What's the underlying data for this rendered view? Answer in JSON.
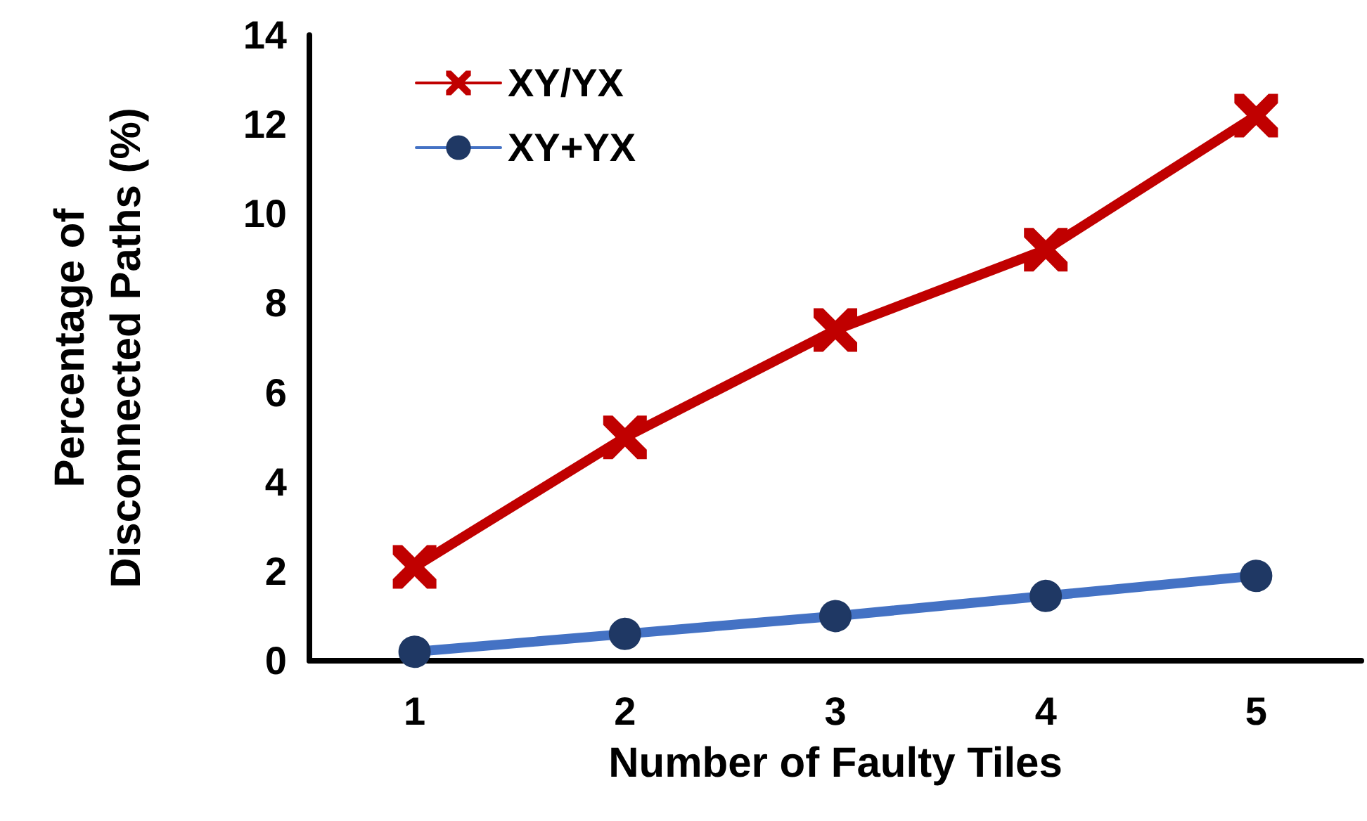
{
  "chart_data": {
    "type": "line",
    "xlabel": "Number of Faulty Tiles",
    "ylabel": "Percentage of\nDisconnected Paths (%)",
    "categories": [
      "1",
      "2",
      "3",
      "4",
      "5"
    ],
    "series": [
      {
        "name": "XY/YX",
        "color": "#c00000",
        "marker": "cross",
        "values": [
          2.1,
          5.0,
          7.4,
          9.2,
          12.2
        ]
      },
      {
        "name": "XY+YX",
        "color": "#4472c4",
        "marker": "circle",
        "values": [
          0.2,
          0.6,
          1.0,
          1.45,
          1.9
        ]
      }
    ],
    "ylim": [
      0,
      14
    ],
    "yticks": [
      0,
      2,
      4,
      6,
      8,
      10,
      12,
      14
    ],
    "grid": false,
    "legend": "top left",
    "line_style": "solid"
  }
}
